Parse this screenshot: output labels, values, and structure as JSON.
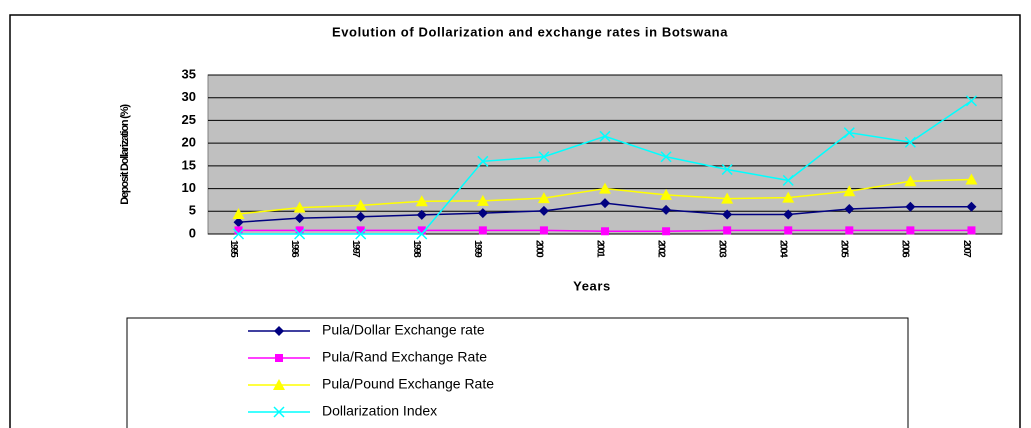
{
  "chart_data": {
    "type": "line",
    "title": "Evolution of Dollarization and exchange rates in Botswana",
    "x_label": "Years",
    "y_label": "Deposit Dollarization (%)",
    "categories": [
      "1995",
      "1996",
      "1997",
      "1998",
      "1999",
      "2000",
      "2001",
      "2002",
      "2003",
      "2004",
      "2005",
      "2006",
      "2007"
    ],
    "series": [
      {
        "name": "Pula/Dollar Exchange rate",
        "color": "#000080",
        "marker": "diamond",
        "values": [
          2.6,
          3.5,
          3.8,
          4.2,
          4.6,
          5.1,
          6.8,
          5.3,
          4.3,
          4.3,
          5.5,
          6.0,
          6.0
        ]
      },
      {
        "name": "Pula/Rand Exchange Rate",
        "color": "#ff00ff",
        "marker": "square",
        "values": [
          0.8,
          0.8,
          0.8,
          0.8,
          0.8,
          0.8,
          0.6,
          0.6,
          0.8,
          0.8,
          0.8,
          0.8,
          0.8
        ]
      },
      {
        "name": "Pula/Pound Exchange Rate",
        "color": "#ffff00",
        "marker": "triangle",
        "values": [
          4.4,
          5.8,
          6.3,
          7.2,
          7.3,
          7.9,
          10.0,
          8.6,
          7.8,
          8.0,
          9.4,
          11.6,
          12.0
        ]
      },
      {
        "name": "Dollarization Index",
        "color": "#00ffff",
        "marker": "x",
        "values": [
          0,
          0,
          0,
          0,
          16,
          17,
          21.5,
          17,
          14.2,
          11.8,
          22.3,
          20.2,
          29.3
        ]
      }
    ],
    "ylim": [
      0,
      35
    ],
    "yticks": [
      0,
      5,
      10,
      15,
      20,
      25,
      30,
      35
    ],
    "grid": true,
    "legend": "bottom"
  }
}
